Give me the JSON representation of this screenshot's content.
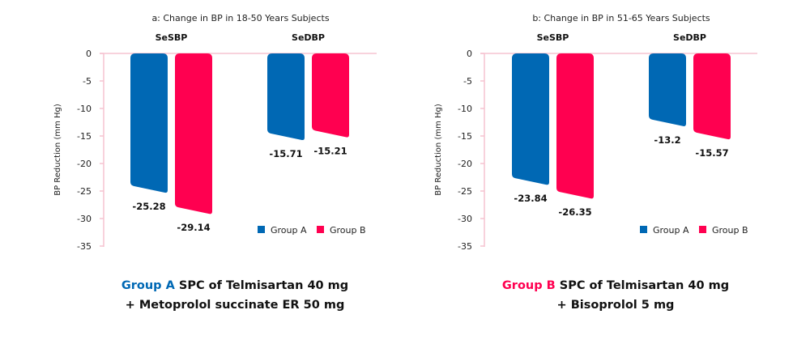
{
  "colors": {
    "group_a": "#0068B4",
    "group_b": "#FF0050",
    "axis": "#F6C3D0"
  },
  "chart_data": [
    {
      "type": "bar",
      "title": "a: Change in BP in 18-50 Years Subjects",
      "categories": [
        "SeSBP",
        "SeDBP"
      ],
      "series": [
        {
          "name": "Group A",
          "values": [
            -25.28,
            -15.71
          ]
        },
        {
          "name": "Group B",
          "values": [
            -29.14,
            -15.21
          ]
        }
      ],
      "data_labels": [
        [
          "-25.28",
          "-15.71"
        ],
        [
          "-29.14",
          "-15.21"
        ]
      ],
      "xlabel": "",
      "ylabel": "BP Reduction (mm Hg)",
      "ylim": [
        -35,
        0
      ],
      "yticks": [
        0,
        -5,
        -10,
        -15,
        -20,
        -25,
        -30,
        -35
      ],
      "ytick_labels": [
        "0",
        "-5",
        "-10",
        "-15",
        "-20",
        "-25",
        "-30",
        "-35"
      ],
      "grid": false,
      "legend": [
        "Group A",
        "Group B"
      ],
      "legend_position": "bottom-right"
    },
    {
      "type": "bar",
      "title": "b: Change in BP in 51-65 Years Subjects",
      "categories": [
        "SeSBP",
        "SeDBP"
      ],
      "series": [
        {
          "name": "Group A",
          "values": [
            -23.84,
            -13.2
          ]
        },
        {
          "name": "Group B",
          "values": [
            -26.35,
            -15.57
          ]
        }
      ],
      "data_labels": [
        [
          "-23.84",
          "-13.2"
        ],
        [
          "-26.35",
          "-15.57"
        ]
      ],
      "xlabel": "",
      "ylabel": "BP Reduction (mm Hg)",
      "ylim": [
        -35,
        0
      ],
      "yticks": [
        0,
        -5,
        -10,
        -15,
        -20,
        -25,
        -30,
        -35
      ],
      "ytick_labels": [
        "0",
        "-5",
        "-10",
        "-15",
        "-20",
        "-25",
        "-30",
        "-35"
      ],
      "grid": false,
      "legend": [
        "Group A",
        "Group B"
      ],
      "legend_position": "bottom-right"
    }
  ],
  "captions": [
    {
      "group": "Group A",
      "line1": " SPC of Telmisartan 40 mg",
      "line2": "+ Metoprolol succinate ER 50 mg"
    },
    {
      "group": "Group B",
      "line1": " SPC of Telmisartan 40 mg",
      "line2": "+ Bisoprolol 5 mg"
    }
  ]
}
